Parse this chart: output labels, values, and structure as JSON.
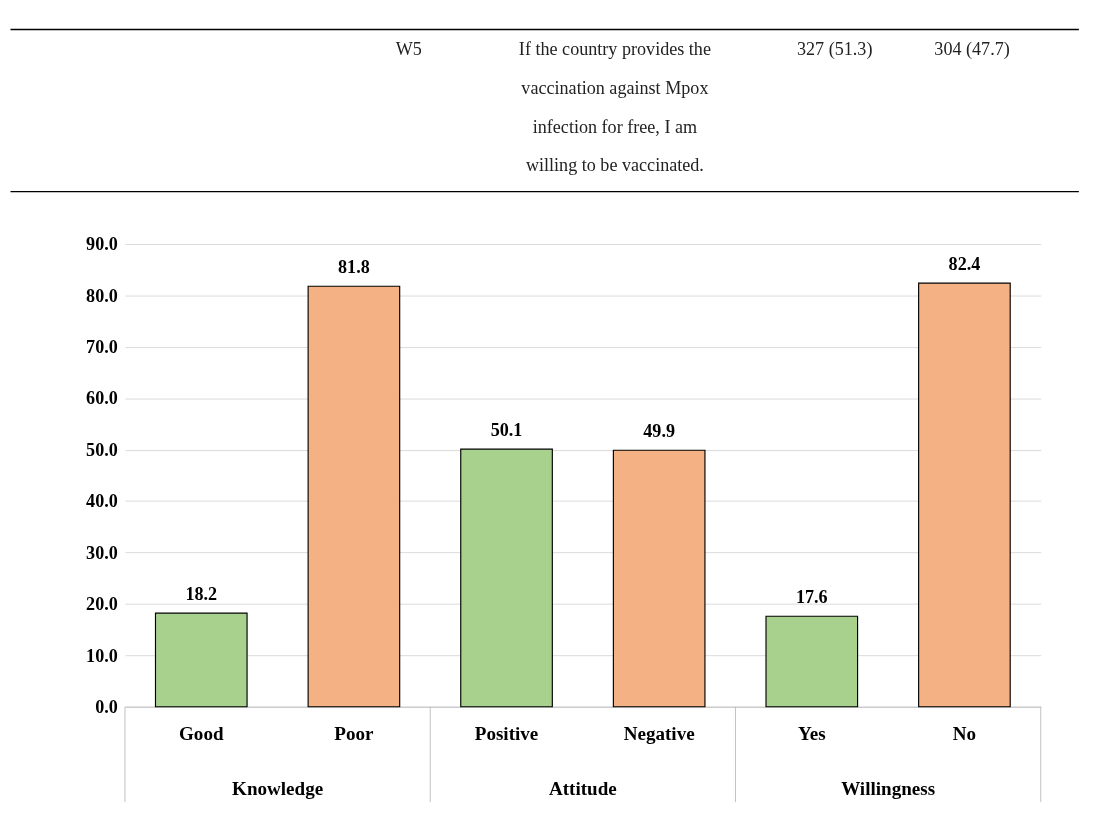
{
  "chart_data": {
    "type": "bar",
    "categories": [
      "Good",
      "Poor",
      "Positive",
      "Negative",
      "Yes",
      "No"
    ],
    "series": [
      {
        "values": [
          18.2,
          81.8,
          50.1,
          49.9,
          17.6,
          82.4
        ],
        "colors": [
          "#a9d18e",
          "#f4b183",
          "#a9d18e",
          "#f4b183",
          "#a9d18e",
          "#f4b183"
        ]
      }
    ],
    "ylim": [
      0,
      90
    ],
    "yticks": [
      {
        "value": 0,
        "label": "0.0"
      },
      {
        "value": 10,
        "label": "10.0"
      },
      {
        "value": 20,
        "label": "20.0"
      },
      {
        "value": 30,
        "label": "30.0"
      },
      {
        "value": 40,
        "label": "40.0"
      },
      {
        "value": 50,
        "label": "50.0"
      },
      {
        "value": 60,
        "label": "60.0"
      },
      {
        "value": 70,
        "label": "70.0"
      },
      {
        "value": 80,
        "label": "80.0"
      },
      {
        "value": 90,
        "label": "90.0"
      }
    ],
    "grid": "y",
    "data_labels": true,
    "annotations": [
      "W5",
      "If the country provides the vaccination against Mpox infection for free, I am willing to be vaccinated.",
      "327 (51.3)",
      "304 (47.7)",
      "Knowledge",
      "Attitude",
      "Willingness"
    ]
  }
}
